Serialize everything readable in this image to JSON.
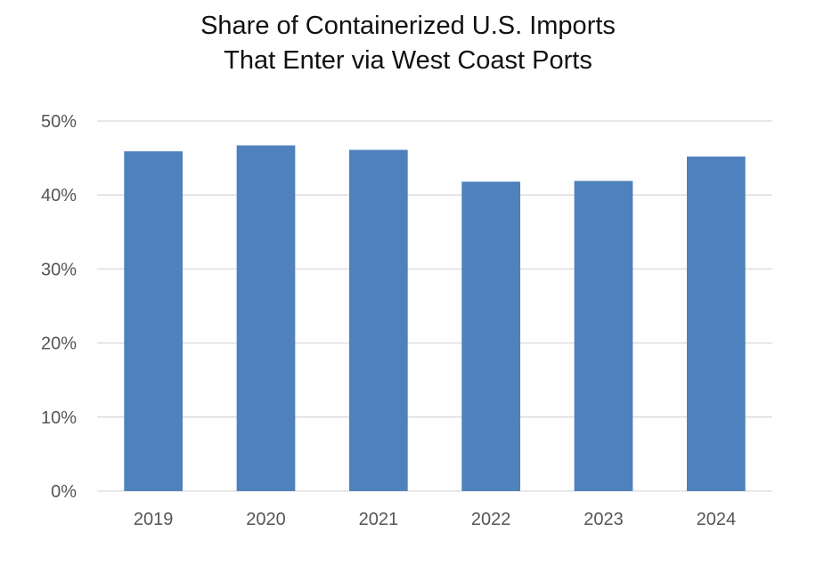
{
  "chart_data": {
    "type": "bar",
    "title_lines": [
      "Share of Containerized U.S. Imports",
      "That Enter via West Coast Ports"
    ],
    "categories": [
      "2019",
      "2020",
      "2021",
      "2022",
      "2023",
      "2024"
    ],
    "values": [
      45.9,
      46.7,
      46.1,
      41.8,
      41.9,
      45.2
    ],
    "y_unit": "%",
    "ylim": [
      0,
      50
    ],
    "yticks": [
      0,
      10,
      20,
      30,
      40,
      50
    ],
    "ytick_labels": [
      "0%",
      "10%",
      "20%",
      "30%",
      "40%",
      "50%"
    ],
    "grid": true,
    "legend": "none",
    "bar_color": "#4f81bd",
    "grid_color": "#d9d9d9"
  }
}
